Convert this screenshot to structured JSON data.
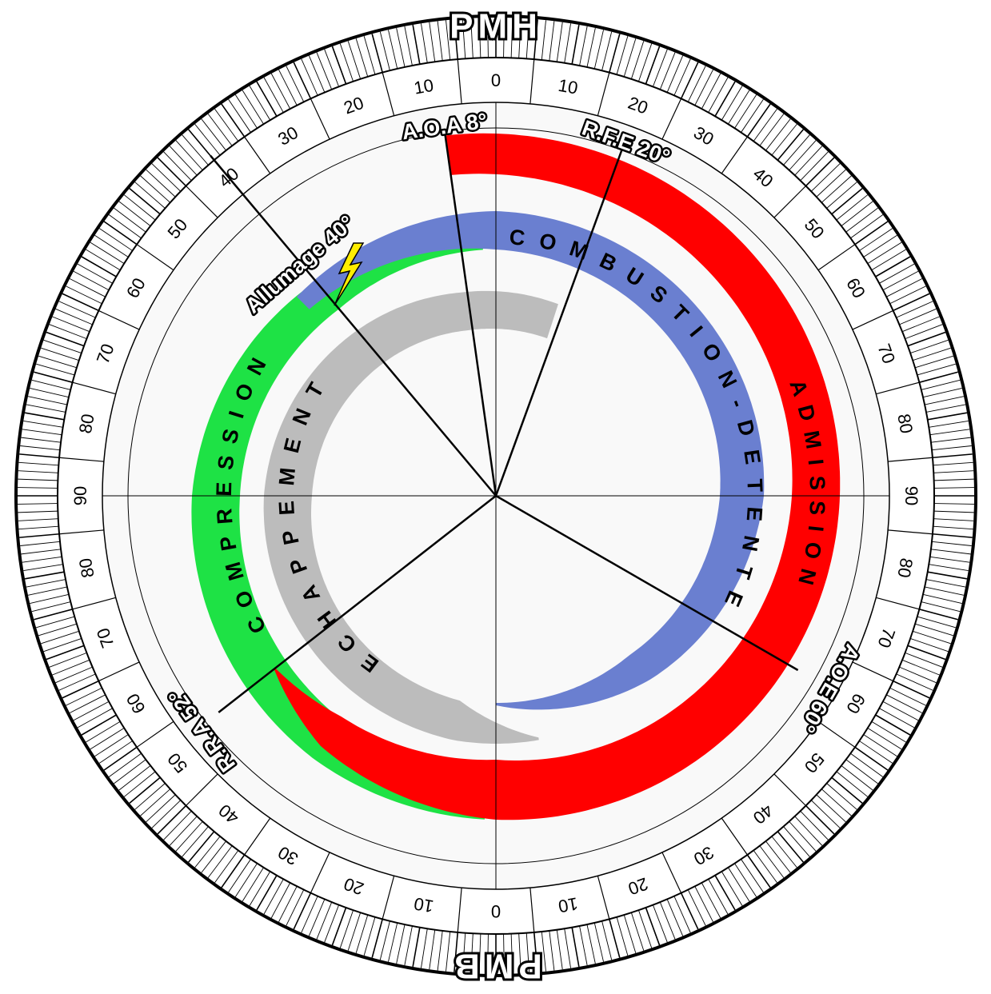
{
  "title_top": "PMH",
  "title_bottom": "PMB",
  "scale_labels": [
    "0",
    "10",
    "20",
    "30",
    "40",
    "50",
    "60",
    "70",
    "80",
    "90",
    "80",
    "70",
    "60",
    "50",
    "40",
    "30",
    "20",
    "10",
    "0",
    "10",
    "20",
    "30",
    "40",
    "50",
    "60",
    "70",
    "80",
    "90",
    "80",
    "70",
    "60",
    "50",
    "40",
    "30",
    "20",
    "10"
  ],
  "events": [
    "A.O.A 8°",
    "R.F.E 20°",
    "Allumage 40°",
    "R.R.A 52°",
    "A.O.E 60°"
  ],
  "phases": [
    {
      "name": "ADMISSION",
      "color": "#ff0000"
    },
    {
      "name": "COMBUSTION-DETENTE",
      "color": "#6a7fd0"
    },
    {
      "name": "COMPRESSION",
      "color": "#1ee245"
    },
    {
      "name": "ECHAPPEMENT",
      "color": "#bcbcbc"
    }
  ]
}
